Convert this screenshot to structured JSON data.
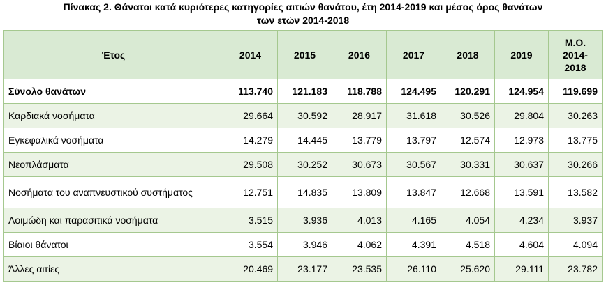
{
  "caption": {
    "line1": "Πίνακας 2. Θάνατοι κατά κυριότερες κατηγορίες αιτιών θανάτου, έτη 2014-2019 και μέσος όρος θανάτων",
    "line2": "των ετών 2014-2018"
  },
  "table": {
    "header": {
      "label": "Έτος",
      "columns": [
        "2014",
        "2015",
        "2016",
        "2017",
        "2018",
        "2019"
      ],
      "avg_line1": "Μ.Ο.",
      "avg_line2": "2014-",
      "avg_line3": "2018"
    },
    "rows": [
      {
        "label": "Σύνολο θανάτων",
        "values": [
          "113.740",
          "121.183",
          "118.788",
          "124.495",
          "120.291",
          "124.954",
          "119.699"
        ]
      },
      {
        "label": "Καρδιακά νοσήματα",
        "values": [
          "29.664",
          "30.592",
          "28.917",
          "31.618",
          "30.526",
          "29.804",
          "30.263"
        ]
      },
      {
        "label": "Εγκεφαλικά νοσήματα",
        "values": [
          "14.279",
          "14.445",
          "13.779",
          "13.797",
          "12.574",
          "12.973",
          "13.775"
        ]
      },
      {
        "label": "Νεοπλάσματα",
        "values": [
          "29.508",
          "30.252",
          "30.673",
          "30.567",
          "30.331",
          "30.637",
          "30.266"
        ]
      },
      {
        "label": "Νοσήματα του αναπνευστικού συστήματος",
        "values": [
          "12.751",
          "14.835",
          "13.809",
          "13.847",
          "12.668",
          "13.591",
          "13.582"
        ]
      },
      {
        "label": "Λοιμώδη και παρασιτικά νοσήματα",
        "values": [
          "3.515",
          "3.936",
          "4.013",
          "4.165",
          "4.054",
          "4.234",
          "3.937"
        ]
      },
      {
        "label": "Βίαιοι θάνατοι",
        "values": [
          "3.554",
          "3.946",
          "4.062",
          "4.391",
          "4.518",
          "4.604",
          "4.094"
        ]
      },
      {
        "label": "Άλλες αιτίες",
        "values": [
          "20.469",
          "23.177",
          "23.535",
          "26.110",
          "25.620",
          "29.111",
          "23.782"
        ]
      }
    ]
  }
}
